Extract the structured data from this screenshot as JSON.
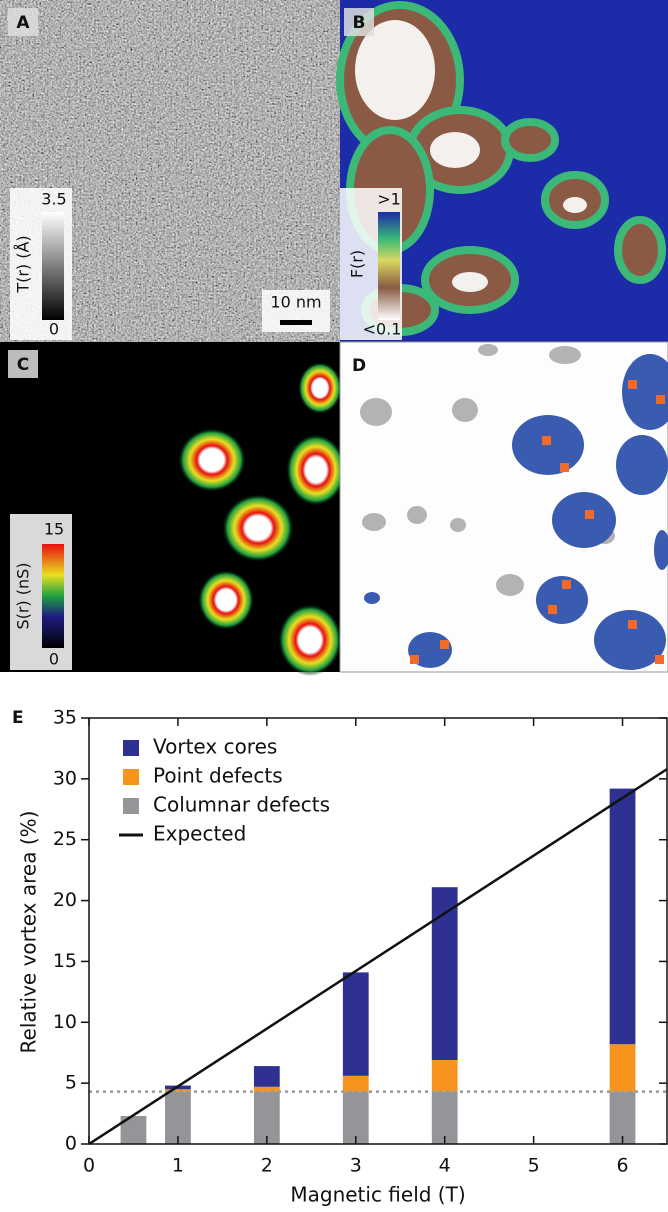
{
  "panels": [
    {
      "label": "A",
      "colorbar": {
        "max": "3.5",
        "min": "0",
        "label": "T(r) (Å)"
      },
      "scalebar": "10 nm"
    },
    {
      "label": "B",
      "colorbar": {
        "max": ">1",
        "min": "<0.1",
        "label": "F(r)"
      }
    },
    {
      "label": "C",
      "colorbar": {
        "max": "15",
        "min": "0",
        "label": "S(r) (nS)"
      }
    },
    {
      "label": "D"
    }
  ],
  "chart_data": {
    "type": "bar",
    "panel_label": "E",
    "xlabel": "Magnetic field (T)",
    "ylabel": "Relative vortex area (%)",
    "x": [
      0.5,
      1,
      2,
      3,
      4,
      6
    ],
    "series": [
      {
        "name": "Columnar defects",
        "color": "#939598",
        "values": [
          2.3,
          4.3,
          4.3,
          4.3,
          4.3,
          4.3
        ]
      },
      {
        "name": "Point defects",
        "color": "#f7941d",
        "values": [
          0,
          0.2,
          0.4,
          1.3,
          2.6,
          3.9
        ]
      },
      {
        "name": "Vortex cores",
        "color": "#2e3192",
        "values": [
          0,
          0.3,
          1.7,
          8.5,
          14.2,
          21.0
        ]
      }
    ],
    "expected": {
      "name": "Expected",
      "color": "#111111",
      "x": [
        0,
        6.5
      ],
      "values": [
        0,
        30.8
      ]
    },
    "reference_line": 4.3,
    "xlim": [
      0,
      6.5
    ],
    "xticks": [
      0,
      1,
      2,
      3,
      4,
      5,
      6
    ],
    "ylim": [
      0,
      35
    ],
    "yticks": [
      0,
      5,
      10,
      15,
      20,
      25,
      30,
      35
    ],
    "legend": "upper left"
  }
}
